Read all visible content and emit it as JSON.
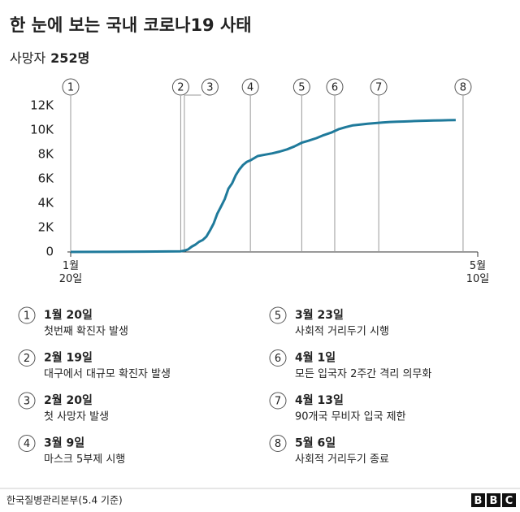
{
  "chart_data": {
    "type": "line",
    "title": "한 눈에 보는 국내 코로나19 사태",
    "subtitle": {
      "label": "사망자",
      "value": "252명"
    },
    "x": [
      0,
      10,
      20,
      30,
      31,
      32,
      33,
      34,
      35,
      36,
      37,
      38,
      39,
      40,
      41,
      42,
      43,
      44,
      45,
      46,
      47,
      48,
      49,
      51,
      53,
      55,
      57,
      59,
      61,
      63,
      65,
      67,
      69,
      71,
      73,
      75,
      77,
      79,
      81,
      83,
      85,
      87,
      89,
      91,
      93,
      95,
      97,
      99,
      101,
      103,
      105
    ],
    "values": [
      1,
      4,
      30,
      51,
      104,
      204,
      433,
      602,
      833,
      977,
      1261,
      1766,
      2337,
      3150,
      3736,
      4335,
      5186,
      5621,
      6284,
      6767,
      7134,
      7382,
      7513,
      7869,
      7979,
      8086,
      8236,
      8413,
      8652,
      8961,
      9137,
      9332,
      9583,
      9786,
      10062,
      10237,
      10384,
      10450,
      10512,
      10564,
      10613,
      10661,
      10683,
      10702,
      10728,
      10752,
      10765,
      10780,
      10793,
      10806,
      10810
    ],
    "color": "#1f7a9b",
    "xlim": [
      0,
      111
    ],
    "xticks": [
      {
        "value": 0,
        "label": "1월 20일"
      },
      {
        "value": 111,
        "label": "5월 10일"
      }
    ],
    "ylim": [
      0,
      12000
    ],
    "yticks": [
      0,
      {
        "value": 2000,
        "label": "2K"
      },
      {
        "value": 4000,
        "label": "4K"
      },
      {
        "value": 6000,
        "label": "6K"
      },
      {
        "value": 8000,
        "label": "8K"
      },
      {
        "value": 10000,
        "label": "10K"
      },
      {
        "value": 12000,
        "label": "12K"
      }
    ],
    "events": [
      {
        "num": 1,
        "day": 0,
        "date": "1월 20일",
        "text": "첫번째 확진자 발생"
      },
      {
        "num": 2,
        "day": 30,
        "date": "2월 19일",
        "text": "대구에서 대규모 확진자 발생"
      },
      {
        "num": 3,
        "day": 31,
        "date": "2월 20일",
        "text": "첫 사망자 발생"
      },
      {
        "num": 4,
        "day": 49,
        "date": "3월 9일",
        "text": "마스크 5부제 시행"
      },
      {
        "num": 5,
        "day": 63,
        "date": "3월 23일",
        "text": "사회적 거리두기 시행"
      },
      {
        "num": 6,
        "day": 72,
        "date": "4월 1일",
        "text": "모든 입국자 2주간 격리 의무화"
      },
      {
        "num": 7,
        "day": 84,
        "date": "4월 13일",
        "text": "90개국 무비자 입국 제한"
      },
      {
        "num": 8,
        "day": 107,
        "date": "5월 6일",
        "text": "사회적 거리두기 종료"
      }
    ],
    "source": "한국질병관리본부(5.4 기준)",
    "brand": [
      "B",
      "B",
      "C"
    ]
  }
}
